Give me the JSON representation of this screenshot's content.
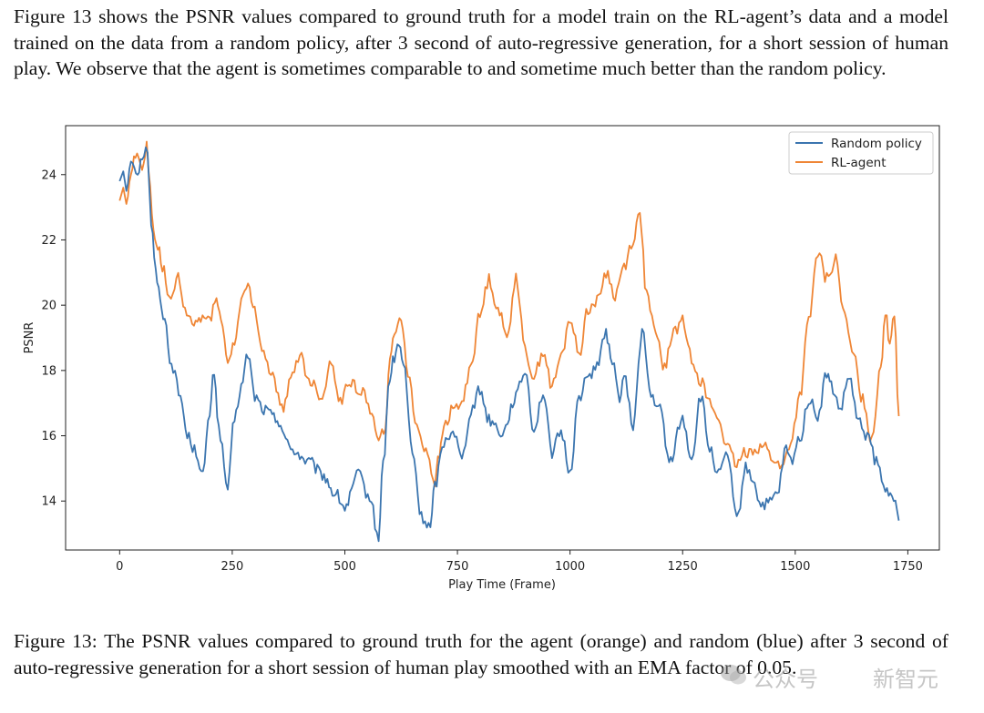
{
  "paragraph": "Figure 13 shows the PSNR values compared to ground truth for a model train on the RL-agent’s data and a model trained on the data from a random policy, after 3 second of auto-regressive generation, for a short session of human play.  We observe that the agent is sometimes comparable to and sometime much better than the random policy.",
  "caption": "Figure 13: The PSNR values compared to ground truth for the agent (orange) and random (blue) after 3 second of auto-regressive generation for a short session of human play smoothed with an EMA factor of 0.05.",
  "watermark": {
    "left": "公众号",
    "right": "新智元"
  },
  "colors": {
    "random": "#3b75af",
    "agent": "#ef8636"
  },
  "chart_data": {
    "type": "line",
    "title": "",
    "xlabel": "Play Time (Frame)",
    "ylabel": "PSNR",
    "xlim": [
      -120,
      1820
    ],
    "ylim": [
      12.5,
      25.5
    ],
    "xticks": [
      0,
      250,
      500,
      750,
      1000,
      1250,
      1500,
      1750
    ],
    "yticks": [
      14,
      16,
      18,
      20,
      22,
      24
    ],
    "legend_position": "top-right",
    "series": [
      {
        "name": "Random policy",
        "color": "#3b75af",
        "x": [
          0,
          8,
          15,
          25,
          40,
          50,
          62,
          70,
          80,
          90,
          100,
          115,
          135,
          150,
          170,
          185,
          200,
          210,
          220,
          240,
          255,
          270,
          285,
          300,
          320,
          350,
          380,
          420,
          450,
          480,
          500,
          530,
          555,
          575,
          585,
          600,
          610,
          620,
          630,
          650,
          670,
          690,
          700,
          720,
          740,
          760,
          780,
          800,
          820,
          850,
          880,
          900,
          920,
          940,
          960,
          980,
          1000,
          1020,
          1040,
          1060,
          1080,
          1090,
          1110,
          1120,
          1140,
          1160,
          1180,
          1200,
          1220,
          1250,
          1270,
          1290,
          1310,
          1330,
          1350,
          1370,
          1390,
          1410,
          1420,
          1440,
          1460,
          1480,
          1490,
          1510,
          1530,
          1550,
          1570,
          1580,
          1600,
          1620,
          1640,
          1660,
          1680,
          1700,
          1715,
          1730
        ],
        "y": [
          23.8,
          24.1,
          23.5,
          24.4,
          24.1,
          24.6,
          24.8,
          22.5,
          21.0,
          20.2,
          19.5,
          18.2,
          17.2,
          16.0,
          15.5,
          14.8,
          16.7,
          18.0,
          16.2,
          14.4,
          16.5,
          17.5,
          18.5,
          17.2,
          16.8,
          16.5,
          15.6,
          15.2,
          14.8,
          14.2,
          13.8,
          14.8,
          14.1,
          12.9,
          15.2,
          17.8,
          18.4,
          18.8,
          18.2,
          15.5,
          13.5,
          13.2,
          14.5,
          15.8,
          16.2,
          15.3,
          16.8,
          17.4,
          16.5,
          16.1,
          17.2,
          18.0,
          16.2,
          17.3,
          15.5,
          16.1,
          14.9,
          17.2,
          17.8,
          18.2,
          19.1,
          18.5,
          17.2,
          17.8,
          16.3,
          19.2,
          17.2,
          16.8,
          15.2,
          16.5,
          15.3,
          17.2,
          15.6,
          14.8,
          15.4,
          13.4,
          15.0,
          14.6,
          13.9,
          13.9,
          14.2,
          15.6,
          15.2,
          15.9,
          17.1,
          16.6,
          17.9,
          17.5,
          16.8,
          17.8,
          16.4,
          16.0,
          15.2,
          14.3,
          14.3,
          13.4
        ]
      },
      {
        "name": "RL-agent",
        "color": "#ef8636",
        "x": [
          0,
          8,
          15,
          25,
          35,
          50,
          60,
          68,
          75,
          85,
          95,
          110,
          130,
          145,
          165,
          180,
          200,
          215,
          225,
          240,
          255,
          270,
          285,
          300,
          320,
          340,
          360,
          380,
          400,
          420,
          450,
          470,
          490,
          510,
          540,
          560,
          575,
          590,
          600,
          610,
          625,
          640,
          660,
          680,
          700,
          710,
          720,
          740,
          760,
          780,
          800,
          820,
          840,
          860,
          880,
          900,
          920,
          940,
          960,
          980,
          1000,
          1020,
          1040,
          1060,
          1080,
          1100,
          1120,
          1140,
          1155,
          1170,
          1190,
          1210,
          1230,
          1250,
          1270,
          1290,
          1310,
          1330,
          1350,
          1370,
          1390,
          1410,
          1430,
          1450,
          1470,
          1490,
          1510,
          1530,
          1550,
          1570,
          1590,
          1610,
          1630,
          1650,
          1670,
          1690,
          1700,
          1710,
          1720,
          1730
        ],
        "y": [
          23.2,
          23.6,
          23.1,
          24.0,
          24.7,
          24.2,
          24.9,
          23.5,
          22.2,
          21.8,
          21.2,
          20.1,
          20.8,
          19.8,
          19.4,
          19.6,
          19.6,
          20.3,
          19.5,
          18.3,
          18.8,
          20.2,
          20.5,
          19.8,
          18.5,
          17.8,
          16.8,
          17.7,
          18.5,
          17.7,
          17.2,
          18.3,
          17.0,
          17.7,
          17.3,
          16.8,
          15.8,
          16.3,
          18.2,
          19.2,
          19.6,
          18.0,
          16.2,
          15.6,
          14.6,
          15.4,
          16.3,
          16.8,
          17.0,
          18.2,
          19.7,
          20.8,
          19.9,
          19.0,
          20.9,
          18.6,
          17.8,
          18.6,
          17.5,
          18.4,
          19.6,
          18.5,
          19.9,
          20.1,
          21.0,
          20.3,
          21.2,
          22.0,
          22.8,
          20.3,
          19.1,
          18.1,
          19.2,
          19.5,
          18.4,
          17.7,
          17.0,
          16.5,
          15.6,
          15.1,
          15.5,
          15.6,
          15.7,
          15.3,
          15.0,
          15.8,
          17.2,
          19.5,
          21.6,
          20.8,
          21.4,
          19.6,
          18.4,
          17.1,
          15.9,
          18.2,
          19.7,
          18.9,
          19.8,
          16.6
        ]
      }
    ]
  }
}
